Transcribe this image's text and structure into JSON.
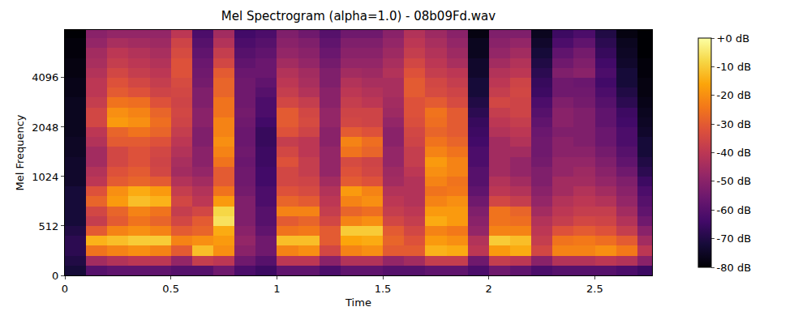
{
  "chart_data": {
    "type": "heatmap",
    "title": "Mel Spectrogram (alpha=1.0) - 08b09Fd.wav",
    "x_label": "Time",
    "y_label": "Mel Frequency",
    "color": "inferno",
    "x": [
      0.05,
      0.15,
      0.25,
      0.35,
      0.45,
      0.55,
      0.65,
      0.75,
      0.85,
      0.95,
      1.05,
      1.15,
      1.25,
      1.35,
      1.45,
      1.55,
      1.65,
      1.75,
      1.85,
      1.95,
      2.05,
      2.15,
      2.25,
      2.35,
      2.45,
      2.55,
      2.65,
      2.75
    ],
    "y": [
      51,
      154,
      256,
      358,
      461,
      549,
      630,
      724,
      832,
      955,
      1097,
      1261,
      1448,
      1663,
      1911,
      2195,
      2521,
      2896,
      3327,
      3822,
      4390,
      5043,
      5793,
      6654,
      7644
    ],
    "z": [
      [
        -72,
        -60,
        -58,
        -58,
        -58,
        -60,
        -60,
        -55,
        -62,
        -65,
        -58,
        -58,
        -62,
        -58,
        -58,
        -60,
        -60,
        -58,
        -58,
        -62,
        -55,
        -58,
        -62,
        -60,
        -60,
        -60,
        -62,
        -65
      ],
      [
        -70,
        -45,
        -42,
        -40,
        -40,
        -48,
        -38,
        -40,
        -55,
        -60,
        -40,
        -40,
        -50,
        -42,
        -42,
        -48,
        -45,
        -38,
        -38,
        -55,
        -38,
        -40,
        -50,
        -42,
        -42,
        -40,
        -42,
        -50
      ],
      [
        -68,
        -25,
        -22,
        -20,
        -22,
        -30,
        -12,
        -20,
        -50,
        -55,
        -22,
        -20,
        -35,
        -22,
        -20,
        -30,
        -30,
        -14,
        -15,
        -40,
        -18,
        -15,
        -35,
        -22,
        -22,
        -20,
        -24,
        -40
      ],
      [
        -68,
        -14,
        -12,
        -10,
        -10,
        -22,
        -20,
        -18,
        -48,
        -55,
        -12,
        -12,
        -30,
        -16,
        -15,
        -28,
        -32,
        -18,
        -20,
        -42,
        -10,
        -12,
        -38,
        -25,
        -24,
        -26,
        -30,
        -45
      ],
      [
        -70,
        -30,
        -22,
        -20,
        -22,
        -30,
        -28,
        -15,
        -50,
        -58,
        -25,
        -24,
        -30,
        -10,
        -10,
        -30,
        -35,
        -22,
        -24,
        -48,
        -22,
        -22,
        -40,
        -32,
        -30,
        -32,
        -38,
        -50
      ],
      [
        -72,
        -38,
        -30,
        -25,
        -28,
        -35,
        -30,
        -6,
        -52,
        -60,
        -30,
        -28,
        -35,
        -22,
        -20,
        -35,
        -38,
        -15,
        -18,
        -50,
        -25,
        -26,
        -42,
        -38,
        -35,
        -36,
        -42,
        -55
      ],
      [
        -72,
        -35,
        -28,
        -22,
        -25,
        -38,
        -35,
        -8,
        -52,
        -60,
        -22,
        -22,
        -38,
        -28,
        -26,
        -38,
        -40,
        -18,
        -18,
        -52,
        -25,
        -28,
        -45,
        -40,
        -38,
        -38,
        -45,
        -58
      ],
      [
        -72,
        -28,
        -18,
        -12,
        -14,
        -35,
        -40,
        -18,
        -52,
        -62,
        -28,
        -30,
        -40,
        -22,
        -20,
        -40,
        -42,
        -22,
        -20,
        -55,
        -35,
        -38,
        -48,
        -42,
        -40,
        -42,
        -48,
        -60
      ],
      [
        -72,
        -32,
        -20,
        -15,
        -18,
        -38,
        -42,
        -25,
        -54,
        -62,
        -32,
        -34,
        -42,
        -18,
        -22,
        -42,
        -42,
        -25,
        -24,
        -58,
        -40,
        -42,
        -50,
        -45,
        -42,
        -45,
        -50,
        -62
      ],
      [
        -74,
        -40,
        -30,
        -28,
        -30,
        -42,
        -45,
        -30,
        -55,
        -64,
        -35,
        -36,
        -45,
        -30,
        -32,
        -45,
        -42,
        -22,
        -25,
        -60,
        -42,
        -45,
        -52,
        -45,
        -45,
        -48,
        -52,
        -65
      ],
      [
        -74,
        -42,
        -32,
        -30,
        -35,
        -45,
        -48,
        -30,
        -55,
        -64,
        -35,
        -38,
        -48,
        -32,
        -35,
        -46,
        -40,
        -20,
        -22,
        -60,
        -45,
        -48,
        -52,
        -48,
        -46,
        -50,
        -55,
        -68
      ],
      [
        -74,
        -45,
        -35,
        -32,
        -36,
        -44,
        -50,
        -25,
        -56,
        -65,
        -32,
        -38,
        -48,
        -34,
        -36,
        -48,
        -38,
        -18,
        -22,
        -62,
        -45,
        -48,
        -54,
        -48,
        -48,
        -52,
        -58,
        -70
      ],
      [
        -75,
        -45,
        -35,
        -32,
        -35,
        -42,
        -50,
        -22,
        -55,
        -65,
        -35,
        -40,
        -48,
        -25,
        -28,
        -48,
        -38,
        -22,
        -25,
        -62,
        -45,
        -45,
        -55,
        -50,
        -50,
        -54,
        -60,
        -72
      ],
      [
        -75,
        -42,
        -30,
        -30,
        -32,
        -40,
        -52,
        -20,
        -56,
        -66,
        -38,
        -40,
        -50,
        -22,
        -26,
        -50,
        -36,
        -25,
        -28,
        -64,
        -45,
        -42,
        -55,
        -50,
        -52,
        -56,
        -62,
        -72
      ],
      [
        -76,
        -40,
        -28,
        -25,
        -28,
        -38,
        -52,
        -22,
        -56,
        -66,
        -32,
        -36,
        -50,
        -30,
        -32,
        -50,
        -35,
        -28,
        -30,
        -65,
        -42,
        -40,
        -56,
        -52,
        -52,
        -56,
        -62,
        -74
      ],
      [
        -76,
        -35,
        -18,
        -20,
        -26,
        -36,
        -50,
        -22,
        -55,
        -64,
        -30,
        -34,
        -48,
        -35,
        -36,
        -48,
        -33,
        -26,
        -30,
        -66,
        -40,
        -38,
        -58,
        -50,
        -52,
        -58,
        -64,
        -75
      ],
      [
        -76,
        -35,
        -20,
        -22,
        -28,
        -35,
        -50,
        -25,
        -54,
        -62,
        -30,
        -35,
        -48,
        -36,
        -36,
        -46,
        -32,
        -25,
        -30,
        -68,
        -38,
        -36,
        -60,
        -50,
        -52,
        -58,
        -65,
        -76
      ],
      [
        -76,
        -38,
        -25,
        -26,
        -32,
        -36,
        -52,
        -25,
        -55,
        -62,
        -35,
        -38,
        -50,
        -38,
        -40,
        -45,
        -32,
        -30,
        -34,
        -70,
        -35,
        -36,
        -62,
        -52,
        -54,
        -60,
        -68,
        -77
      ],
      [
        -77,
        -40,
        -30,
        -32,
        -36,
        -35,
        -52,
        -28,
        -55,
        -60,
        -38,
        -42,
        -50,
        -40,
        -42,
        -44,
        -30,
        -34,
        -36,
        -72,
        -38,
        -35,
        -65,
        -55,
        -55,
        -62,
        -70,
        -78
      ],
      [
        -77,
        -40,
        -32,
        -35,
        -38,
        -34,
        -54,
        -28,
        -55,
        -58,
        -40,
        -44,
        -52,
        -42,
        -44,
        -44,
        -30,
        -35,
        -38,
        -72,
        -40,
        -36,
        -66,
        -55,
        -56,
        -64,
        -72,
        -78
      ],
      [
        -78,
        -42,
        -35,
        -38,
        -40,
        -32,
        -55,
        -30,
        -56,
        -56,
        -42,
        -45,
        -52,
        -45,
        -46,
        -42,
        -32,
        -38,
        -40,
        -74,
        -42,
        -40,
        -68,
        -52,
        -50,
        -62,
        -72,
        -79
      ],
      [
        -78,
        -44,
        -38,
        -40,
        -42,
        -32,
        -56,
        -35,
        -58,
        -56,
        -45,
        -48,
        -54,
        -48,
        -48,
        -44,
        -35,
        -40,
        -44,
        -74,
        -45,
        -42,
        -70,
        -55,
        -52,
        -64,
        -74,
        -79
      ],
      [
        -79,
        -45,
        -40,
        -42,
        -44,
        -34,
        -58,
        -38,
        -60,
        -58,
        -48,
        -50,
        -56,
        -50,
        -50,
        -46,
        -38,
        -42,
        -46,
        -76,
        -48,
        -45,
        -72,
        -58,
        -54,
        -66,
        -75,
        -80
      ],
      [
        -79,
        -48,
        -44,
        -45,
        -46,
        -36,
        -60,
        -42,
        -62,
        -60,
        -50,
        -52,
        -58,
        -52,
        -52,
        -48,
        -40,
        -44,
        -48,
        -76,
        -50,
        -48,
        -74,
        -62,
        -58,
        -68,
        -76,
        -80
      ],
      [
        -80,
        -50,
        -48,
        -48,
        -48,
        -40,
        -62,
        -45,
        -64,
        -62,
        -52,
        -55,
        -60,
        -55,
        -55,
        -50,
        -42,
        -46,
        -50,
        -78,
        -52,
        -52,
        -76,
        -65,
        -62,
        -70,
        -78,
        -80
      ]
    ],
    "xlim": [
      0,
      2.77
    ],
    "xticks": [
      0,
      0.5,
      1,
      1.5,
      2,
      2.5
    ],
    "ylim": [
      0,
      8000
    ],
    "yticks": [
      0,
      512,
      1024,
      2048,
      4096
    ],
    "zlim": [
      -80,
      0
    ],
    "zticks": [
      {
        "value": 0,
        "label": "+0 dB"
      },
      {
        "value": -10,
        "label": "-10 dB"
      },
      {
        "value": -20,
        "label": "-20 dB"
      },
      {
        "value": -30,
        "label": "-30 dB"
      },
      {
        "value": -40,
        "label": "-40 dB"
      },
      {
        "value": -50,
        "label": "-50 dB"
      },
      {
        "value": -60,
        "label": "-60 dB"
      },
      {
        "value": -70,
        "label": "-70 dB"
      },
      {
        "value": -80,
        "label": "-80 dB"
      }
    ]
  }
}
